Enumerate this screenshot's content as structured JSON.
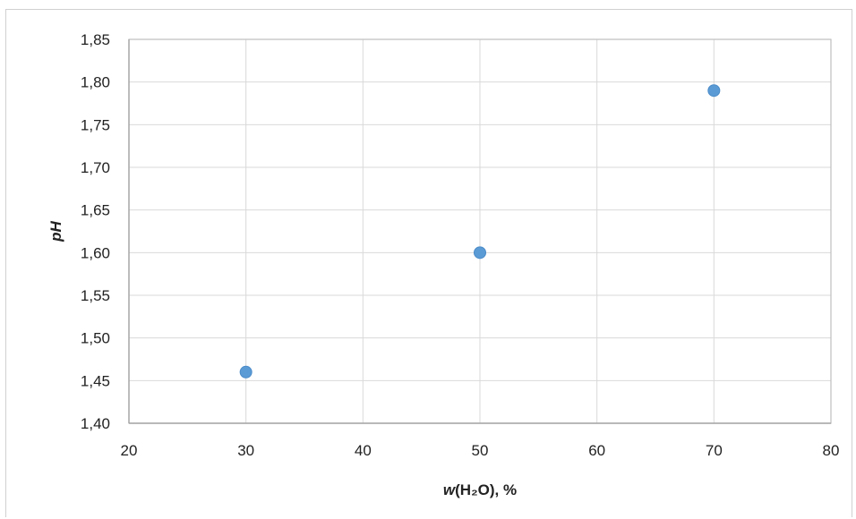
{
  "chart_data": {
    "type": "scatter",
    "title": "",
    "xlabel": "w(H₂O), %",
    "xlabel_parts": {
      "var": "w",
      "rest": "(H₂O), %"
    },
    "ylabel": "pH",
    "xlim": [
      20,
      80
    ],
    "ylim": [
      1.4,
      1.85
    ],
    "xticks": [
      20,
      30,
      40,
      50,
      60,
      70,
      80
    ],
    "xtick_labels": [
      "20",
      "30",
      "40",
      "50",
      "60",
      "70",
      "80"
    ],
    "yticks": [
      1.4,
      1.45,
      1.5,
      1.55,
      1.6,
      1.65,
      1.7,
      1.75,
      1.8,
      1.85
    ],
    "ytick_labels": [
      "1,40",
      "1,45",
      "1,50",
      "1,55",
      "1,60",
      "1,65",
      "1,70",
      "1,75",
      "1,80",
      "1,85"
    ],
    "grid": true,
    "marker_color": "#5b9bd5",
    "grid_color": "#d9d9d9",
    "series": [
      {
        "x": [
          30,
          50,
          70
        ],
        "y": [
          1.46,
          1.6,
          1.79
        ]
      }
    ]
  }
}
